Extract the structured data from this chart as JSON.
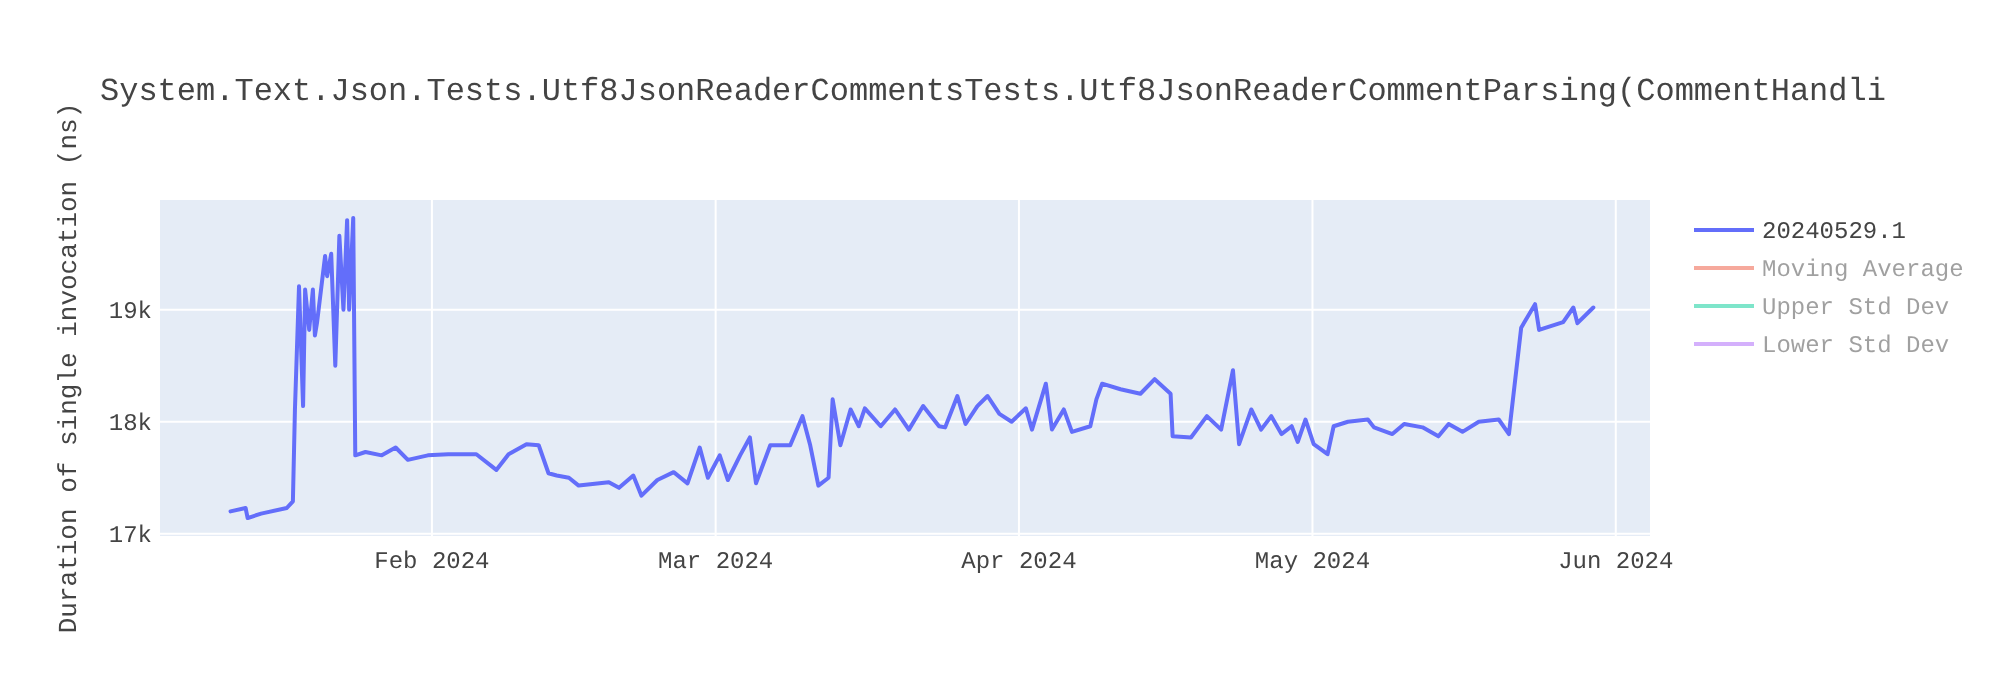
{
  "chart_data": {
    "type": "line",
    "title": "System.Text.Json.Tests.Utf8JsonReaderCommentsTests.Utf8JsonReaderCommentParsing(CommentHandli",
    "ylabel": "Duration of single invocation (ns)",
    "xlim": [
      "2024-01-04T05:00",
      "2024-06-04T12:00"
    ],
    "xticks": [
      {
        "value": "2024-02-01",
        "label": "Feb 2024"
      },
      {
        "value": "2024-03-01",
        "label": "Mar 2024"
      },
      {
        "value": "2024-04-01",
        "label": "Apr 2024"
      },
      {
        "value": "2024-05-01",
        "label": "May 2024"
      },
      {
        "value": "2024-06-01",
        "label": "Jun 2024"
      }
    ],
    "ylim": [
      16980,
      19980
    ],
    "yticks": [
      {
        "value": 17000,
        "label": "17k"
      },
      {
        "value": 18000,
        "label": "18k"
      },
      {
        "value": 19000,
        "label": "19k"
      }
    ],
    "grid": true,
    "legend": "top right",
    "series": [
      {
        "name": "20240529.1",
        "color": "#636efa",
        "x": [
          "2024-01-11T10:00",
          "2024-01-12T23:00",
          "2024-01-13T04:00",
          "2024-01-14T13:00",
          "2024-01-17T04:00",
          "2024-01-17T19:00",
          "2024-01-18T00:00",
          "2024-01-18T10:00",
          "2024-01-18T20:00",
          "2024-01-19T01:00",
          "2024-01-19T11:00",
          "2024-01-19T20:00",
          "2024-01-20T01:00",
          "2024-01-20T06:00",
          "2024-01-21T02:00",
          "2024-01-21T07:00",
          "2024-01-21T17:00",
          "2024-01-22T03:00",
          "2024-01-22T13:00",
          "2024-01-22T23:00",
          "2024-01-23T08:00",
          "2024-01-23T13:00",
          "2024-01-23T23:00",
          "2024-01-24T04:00",
          "2024-01-25T05:00",
          "2024-01-26T21:00",
          "2024-01-28T07:00",
          "2024-01-29T13:00",
          "2024-01-31T14:00",
          "2024-02-02T16:00",
          "2024-02-05T13:00",
          "2024-02-07T14:00",
          "2024-02-08T20:00",
          "2024-02-10T16:00",
          "2024-02-11T22:00",
          "2024-02-12T22:00",
          "2024-02-13T18:00",
          "2024-02-15T00:00",
          "2024-02-16T00:00",
          "2024-02-19T02:00",
          "2024-02-20T03:00",
          "2024-02-21T14:00",
          "2024-02-22T10:00",
          "2024-02-24T01:00",
          "2024-02-25T17:00",
          "2024-02-27T03:00",
          "2024-02-28T09:00",
          "2024-02-29T05:00",
          "2024-03-01T10:00",
          "2024-03-02T06:00",
          "2024-03-03T12:00",
          "2024-03-04T12:00",
          "2024-03-05T03:00",
          "2024-03-06T14:00",
          "2024-03-08T15:00",
          "2024-03-09T21:00",
          "2024-03-10T16:00",
          "2024-03-11T12:00",
          "2024-03-12T13:00",
          "2024-03-12T23:00",
          "2024-03-13T18:00",
          "2024-03-14T19:00",
          "2024-03-15T15:00",
          "2024-03-16T06:00",
          "2024-03-17T21:00",
          "2024-03-19T08:00",
          "2024-03-20T18:00",
          "2024-03-22T05:00",
          "2024-03-23T20:00",
          "2024-03-24T11:00",
          "2024-03-25T17:00",
          "2024-03-26T13:00",
          "2024-03-27T18:00",
          "2024-03-28T19:00",
          "2024-03-30T00:00",
          "2024-03-31T06:00",
          "2024-04-01T17:00",
          "2024-04-02T08:00",
          "2024-04-03T18:00",
          "2024-04-04T09:00",
          "2024-04-05T14:00",
          "2024-04-06T10:00",
          "2024-04-08T07:00",
          "2024-04-08T22:00",
          "2024-04-09T12:00",
          "2024-04-11T09:00",
          "2024-04-13T10:00",
          "2024-04-14T21:00",
          "2024-04-16T12:00",
          "2024-04-16T17:00",
          "2024-04-18T14:00",
          "2024-04-20T05:00",
          "2024-04-21T16:00",
          "2024-04-22T21:00",
          "2024-04-23T12:00",
          "2024-04-24T18:00",
          "2024-04-25T18:00",
          "2024-04-26T19:00",
          "2024-04-27T20:00",
          "2024-04-28T21:00",
          "2024-04-29T12:00",
          "2024-04-30T07:00",
          "2024-05-01T03:00",
          "2024-05-02T13:00",
          "2024-05-03T04:00",
          "2024-05-04T15:00",
          "2024-05-06T16:00",
          "2024-05-07T07:00",
          "2024-05-09T04:00",
          "2024-05-10T09:00",
          "2024-05-12T06:00",
          "2024-05-13T21:00",
          "2024-05-14T22:00",
          "2024-05-16T08:00",
          "2024-05-18T00:00",
          "2024-05-20T01:00",
          "2024-05-21T02:00",
          "2024-05-22T08:00",
          "2024-05-23T18:00",
          "2024-05-24T04:00",
          "2024-05-26T15:00",
          "2024-05-27T16:00",
          "2024-05-28T02:00",
          "2024-05-29T17:00"
        ],
        "values": [
          17200,
          17230,
          17140,
          17180,
          17230,
          17290,
          18110,
          19210,
          18140,
          19180,
          18820,
          19180,
          18770,
          18880,
          19480,
          19300,
          19500,
          18500,
          19660,
          19000,
          19800,
          19000,
          19820,
          17700,
          17730,
          17700,
          17770,
          17660,
          17700,
          17710,
          17710,
          17570,
          17710,
          17800,
          17790,
          17540,
          17520,
          17500,
          17430,
          17460,
          17410,
          17520,
          17340,
          17480,
          17550,
          17450,
          17770,
          17500,
          17700,
          17480,
          17700,
          17860,
          17450,
          17790,
          17790,
          18050,
          17790,
          17430,
          17500,
          18200,
          17790,
          18110,
          17960,
          18120,
          17960,
          18110,
          17930,
          18140,
          17960,
          17950,
          18230,
          17980,
          18140,
          18230,
          18070,
          18000,
          18120,
          17930,
          18340,
          17930,
          18110,
          17910,
          17960,
          18200,
          18340,
          18290,
          18250,
          18380,
          18250,
          17870,
          17860,
          18050,
          17930,
          18460,
          17800,
          18110,
          17930,
          18050,
          17890,
          17960,
          17820,
          18020,
          17800,
          17710,
          17960,
          18000,
          18020,
          17950,
          17890,
          17980,
          17950,
          17870,
          17980,
          17910,
          18000,
          18020,
          17890,
          18840,
          19050,
          18820,
          18890,
          19020,
          18880,
          19020
        ]
      },
      {
        "name": "Moving Average",
        "color": "#ef553b"
      },
      {
        "name": "Upper Std Dev",
        "color": "#00cc96"
      },
      {
        "name": "Lower Std Dev",
        "color": "#ab63fa"
      }
    ]
  }
}
